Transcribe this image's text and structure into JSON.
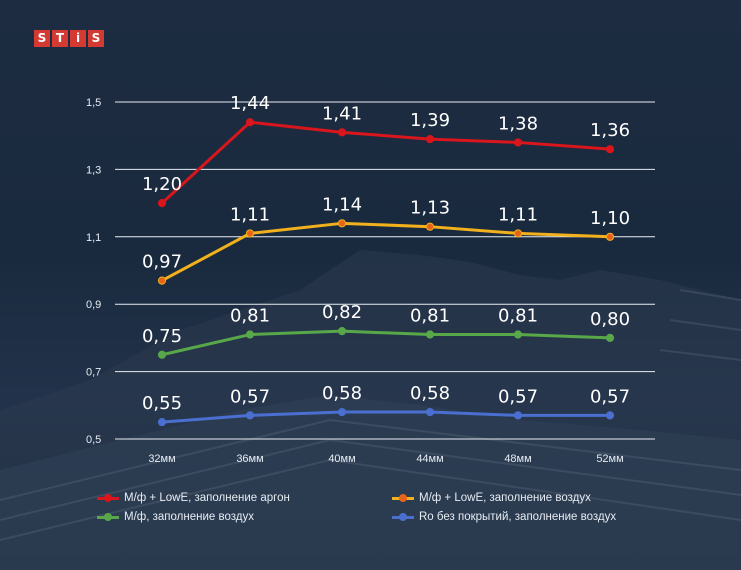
{
  "logo": {
    "letters": [
      "S",
      "T",
      "i",
      "S"
    ]
  },
  "chart_data": {
    "type": "line",
    "categories": [
      "32мм",
      "36мм",
      "40мм",
      "44мм",
      "48мм",
      "52мм"
    ],
    "ylim": [
      0.5,
      1.5
    ],
    "yticks": [
      "0,5",
      "0,7",
      "0,9",
      "1,1",
      "1,3",
      "1,5"
    ],
    "series": [
      {
        "name": "М/ф + LowE, заполнение аргон",
        "color": "#d8161c",
        "values": [
          1.2,
          1.44,
          1.41,
          1.39,
          1.38,
          1.36
        ],
        "labels": [
          "1,20",
          "1,44",
          "1,41",
          "1,39",
          "1,38",
          "1,36"
        ],
        "marker": "#d8161c"
      },
      {
        "name": "М/ф + LowE, заполнение воздух",
        "color": "#f2b01c",
        "values": [
          0.97,
          1.11,
          1.14,
          1.13,
          1.11,
          1.1
        ],
        "labels": [
          "0,97",
          "1,11",
          "1,14",
          "1,13",
          "1,11",
          "1,10"
        ],
        "marker": "#e8631a"
      },
      {
        "name": "М/ф, заполнение воздух",
        "color": "#58a84a",
        "values": [
          0.75,
          0.81,
          0.82,
          0.81,
          0.81,
          0.8
        ],
        "labels": [
          "0,75",
          "0,81",
          "0,82",
          "0,81",
          "0,81",
          "0,80"
        ],
        "marker": "#58a84a"
      },
      {
        "name": "Ro без покрытий, заполнение воздух",
        "color": "#4a6fd0",
        "values": [
          0.55,
          0.57,
          0.58,
          0.58,
          0.57,
          0.57
        ],
        "labels": [
          "0,55",
          "0,57",
          "0,58",
          "0,58",
          "0,57",
          "0,57"
        ],
        "marker": "#4a6fd0"
      }
    ]
  }
}
